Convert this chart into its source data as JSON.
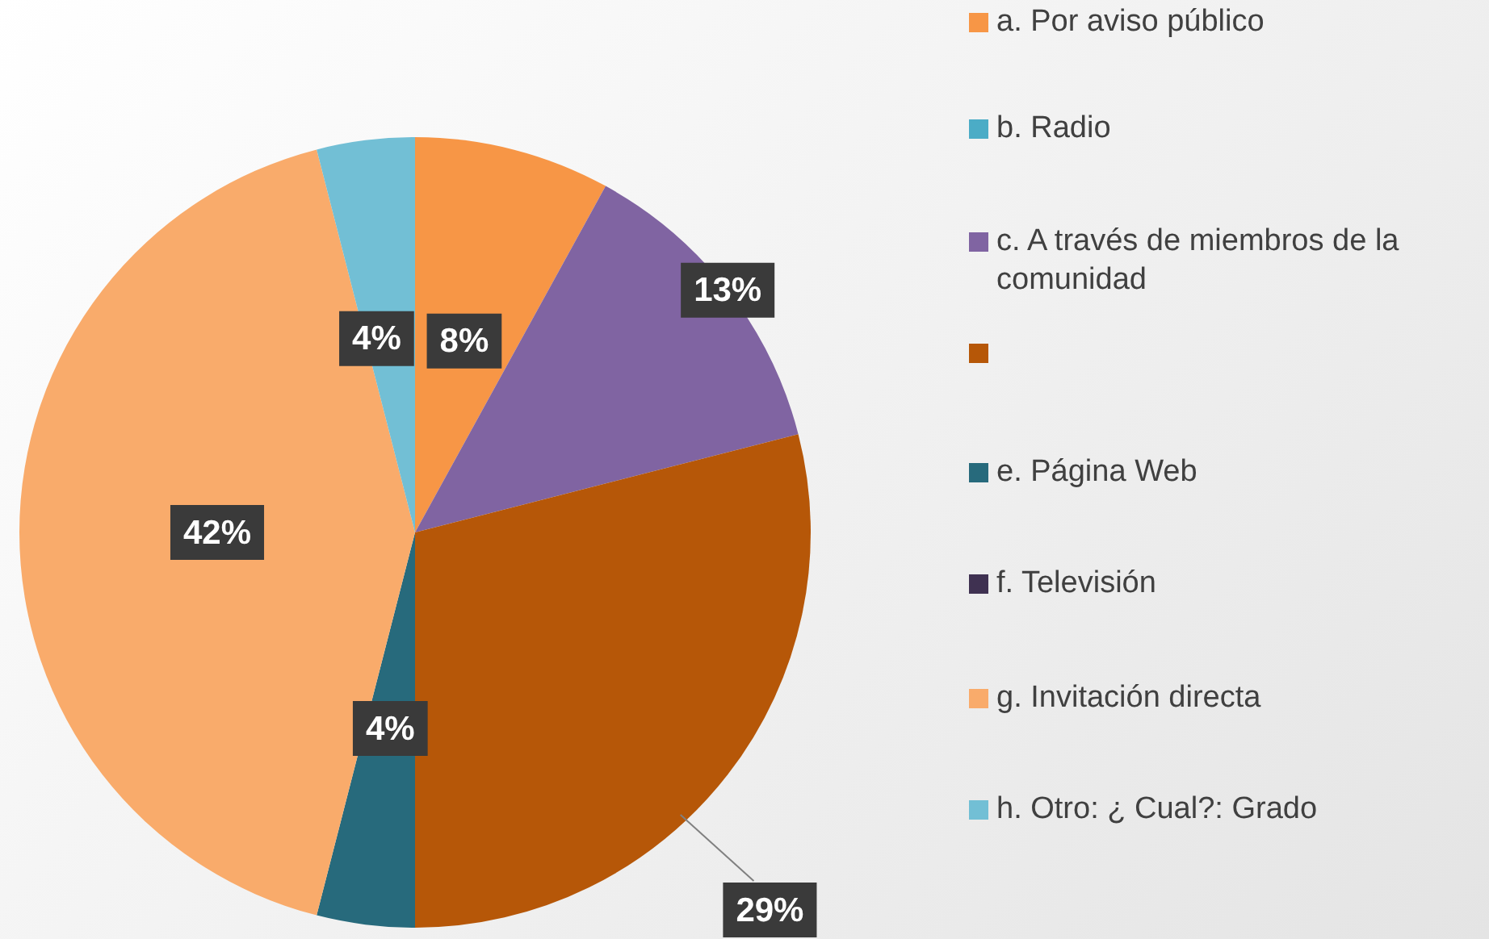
{
  "chart_data": {
    "type": "pie",
    "categories": [
      "a. Por aviso público",
      "b. Radio",
      "c. A través de miembros de la comunidad",
      null,
      "e. Página Web",
      "f. Televisión",
      "g. Invitación directa",
      "h. Otro: ¿ Cual?: Grado"
    ],
    "values": [
      8,
      0,
      13,
      29,
      4,
      0,
      42,
      4
    ],
    "colors": [
      "#f79646",
      "#4bacc6",
      "#8064a2",
      "#b65708",
      "#276a7c",
      "#3f3151",
      "#f9ab6b",
      "#72bfd5"
    ],
    "value_labels": [
      "8%",
      null,
      "13%",
      "29%",
      "4%",
      null,
      "42%",
      "4%"
    ],
    "legend": "right"
  }
}
